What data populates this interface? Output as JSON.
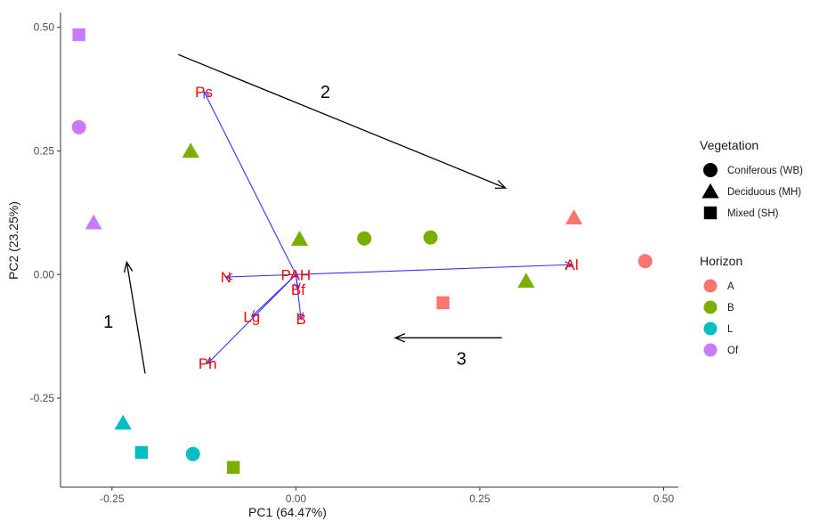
{
  "chart_data": {
    "type": "scatter",
    "title": "",
    "xlabel": "PC1 (64.47%)",
    "ylabel": "PC2 (23.25%)",
    "xlim": [
      -0.32,
      0.52
    ],
    "ylim": [
      -0.43,
      0.53
    ],
    "x_ticks": [
      -0.25,
      0.0,
      0.25,
      0.5
    ],
    "x_tick_labels": [
      "-0.25",
      "0.00",
      "0.25",
      "0.50"
    ],
    "y_ticks": [
      -0.25,
      0.0,
      0.25,
      0.5
    ],
    "y_tick_labels": [
      "-0.25",
      "0.00",
      "0.25",
      "0.50"
    ],
    "grid": false,
    "legend": {
      "placement": "right",
      "vegetation": {
        "title": "Vegetation",
        "entries": [
          {
            "label": "Coniferous (WB)",
            "shape": "circle"
          },
          {
            "label": "Deciduous (MH)",
            "shape": "triangle"
          },
          {
            "label": "Mixed (SH)",
            "shape": "square"
          }
        ]
      },
      "horizon": {
        "title": "Horizon",
        "entries": [
          {
            "label": "A",
            "color": "#F8766D"
          },
          {
            "label": "B",
            "color": "#7CAE00"
          },
          {
            "label": "L",
            "color": "#00BFC4"
          },
          {
            "label": "Of",
            "color": "#C77CFF"
          }
        ]
      }
    },
    "points": [
      {
        "x": -0.295,
        "y": 0.485,
        "shape": "square",
        "horizon": "Of"
      },
      {
        "x": -0.295,
        "y": 0.298,
        "shape": "circle",
        "horizon": "Of"
      },
      {
        "x": -0.275,
        "y": 0.105,
        "shape": "triangle",
        "horizon": "Of"
      },
      {
        "x": -0.143,
        "y": 0.25,
        "shape": "triangle",
        "horizon": "B"
      },
      {
        "x": 0.005,
        "y": 0.072,
        "shape": "triangle",
        "horizon": "B"
      },
      {
        "x": 0.093,
        "y": 0.073,
        "shape": "circle",
        "horizon": "B"
      },
      {
        "x": 0.183,
        "y": 0.075,
        "shape": "circle",
        "horizon": "B"
      },
      {
        "x": 0.313,
        "y": -0.013,
        "shape": "triangle",
        "horizon": "B"
      },
      {
        "x": -0.085,
        "y": -0.39,
        "shape": "square",
        "horizon": "B"
      },
      {
        "x": 0.378,
        "y": 0.115,
        "shape": "triangle",
        "horizon": "A"
      },
      {
        "x": 0.475,
        "y": 0.027,
        "shape": "circle",
        "horizon": "A"
      },
      {
        "x": 0.2,
        "y": -0.057,
        "shape": "square",
        "horizon": "A"
      },
      {
        "x": -0.235,
        "y": -0.3,
        "shape": "triangle",
        "horizon": "L"
      },
      {
        "x": -0.21,
        "y": -0.36,
        "shape": "square",
        "horizon": "L"
      },
      {
        "x": -0.14,
        "y": -0.363,
        "shape": "circle",
        "horizon": "L"
      }
    ],
    "loadings": [
      {
        "name": "Ps",
        "x": -0.125,
        "y": 0.37
      },
      {
        "name": "Al",
        "x": 0.375,
        "y": 0.02
      },
      {
        "name": "N",
        "x": -0.095,
        "y": -0.005
      },
      {
        "name": "Ph",
        "x": -0.12,
        "y": -0.18
      },
      {
        "name": "Lg",
        "x": -0.06,
        "y": -0.085
      },
      {
        "name": "B",
        "x": 0.007,
        "y": -0.09
      },
      {
        "name": "Bf",
        "x": 0.003,
        "y": -0.03
      },
      {
        "name": "PAH",
        "x": 0.0,
        "y": 0.0
      }
    ],
    "annotations": [
      {
        "label": "1",
        "arrow_from": [
          -0.205,
          -0.2
        ],
        "arrow_to": [
          -0.23,
          0.025
        ],
        "label_at": [
          -0.255,
          -0.095
        ]
      },
      {
        "label": "2",
        "arrow_from": [
          -0.16,
          0.445
        ],
        "arrow_to": [
          0.285,
          0.175
        ],
        "label_at": [
          0.04,
          0.37
        ]
      },
      {
        "label": "3",
        "arrow_from": [
          0.28,
          -0.128
        ],
        "arrow_to": [
          0.135,
          -0.128
        ],
        "label_at": [
          0.225,
          -0.17
        ]
      }
    ]
  }
}
